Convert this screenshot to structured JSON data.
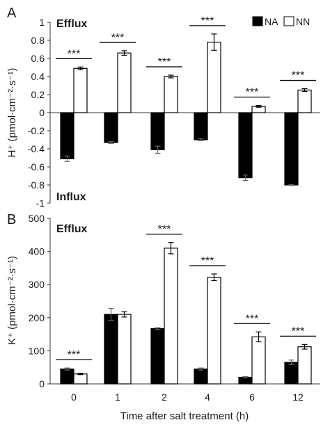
{
  "figure": {
    "xlabel": "Time after salt treatment (h)",
    "categories": [
      "0",
      "1",
      "2",
      "4",
      "6",
      "12"
    ],
    "legend": [
      {
        "label": "NA",
        "fill": "#000000"
      },
      {
        "label": "NN",
        "fill": "#ffffff"
      }
    ]
  },
  "chart_data": [
    {
      "type": "bar",
      "panel_label": "A",
      "categories": [
        "0",
        "1",
        "2",
        "4",
        "6",
        "12"
      ],
      "ylabel": "H⁺ (pmol·cm⁻²·s⁻¹)",
      "xlabel": "",
      "ylim": [
        -1,
        1
      ],
      "yticks": [
        1,
        0.8,
        0.6,
        0.4,
        0.2,
        0,
        -0.2,
        -0.4,
        -0.6,
        -0.8,
        -1
      ],
      "ytick_labels": [
        "1",
        "0.8",
        "0.6",
        "0.4",
        "0.2",
        "0",
        "-0.2",
        "-0.4",
        "-0.6",
        "-0.8",
        "-1"
      ],
      "annotations": {
        "top": "Efflux",
        "bottom": "Influx"
      },
      "legend_position": "top-right",
      "series": [
        {
          "name": "NA",
          "color": "#000000",
          "values": [
            -0.51,
            -0.33,
            -0.41,
            -0.3,
            -0.72,
            -0.8
          ],
          "errors": [
            0.03,
            0.01,
            0.04,
            0.01,
            0.03,
            0.005
          ]
        },
        {
          "name": "NN",
          "color": "#ffffff",
          "values": [
            0.49,
            0.66,
            0.4,
            0.78,
            0.07,
            0.25
          ],
          "errors": [
            0.015,
            0.025,
            0.015,
            0.09,
            0.01,
            0.015
          ]
        }
      ],
      "significance": [
        {
          "index": 0,
          "label": "***"
        },
        {
          "index": 1,
          "label": "***"
        },
        {
          "index": 2,
          "label": "***"
        },
        {
          "index": 3,
          "label": "***"
        },
        {
          "index": 4,
          "label": "***"
        },
        {
          "index": 5,
          "label": "***"
        }
      ]
    },
    {
      "type": "bar",
      "panel_label": "B",
      "categories": [
        "0",
        "1",
        "2",
        "4",
        "6",
        "12"
      ],
      "ylabel": "K⁺ (pmol·cm⁻²·s⁻¹)",
      "xlabel": "Time after salt treatment (h)",
      "ylim": [
        0,
        500
      ],
      "yticks": [
        500,
        400,
        300,
        200,
        100,
        0
      ],
      "ytick_labels": [
        "500",
        "400",
        "300",
        "200",
        "100",
        "0"
      ],
      "annotations": {
        "top": "Efflux"
      },
      "series": [
        {
          "name": "NA",
          "color": "#000000",
          "values": [
            45,
            210,
            167,
            45,
            20,
            65
          ],
          "errors": [
            3,
            18,
            3,
            3,
            2,
            7
          ]
        },
        {
          "name": "NN",
          "color": "#ffffff",
          "values": [
            30,
            210,
            410,
            322,
            142,
            112
          ],
          "errors": [
            2,
            8,
            17,
            10,
            15,
            7
          ]
        }
      ],
      "significance": [
        {
          "index": 0,
          "label": "***"
        },
        {
          "index": 2,
          "label": "***"
        },
        {
          "index": 3,
          "label": "***"
        },
        {
          "index": 4,
          "label": "***"
        },
        {
          "index": 5,
          "label": "***"
        }
      ]
    }
  ]
}
